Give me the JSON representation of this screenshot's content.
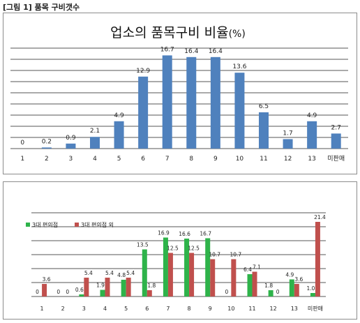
{
  "caption": "[그림 1] 품목 구비갯수",
  "chart_data": [
    {
      "type": "bar",
      "title": "업소의 품목구비 비율",
      "title_unit": "(%)",
      "categories": [
        "1",
        "2",
        "3",
        "4",
        "5",
        "6",
        "7",
        "8",
        "9",
        "10",
        "11",
        "12",
        "13",
        "미판매"
      ],
      "values": [
        0,
        0.2,
        0.9,
        2.1,
        4.9,
        12.9,
        16.7,
        16.4,
        16.4,
        13.6,
        6.5,
        1.7,
        4.9,
        2.7
      ],
      "value_labels": [
        "0",
        "0.2",
        "0.9",
        "2.1",
        "4.9",
        "12.9",
        "16.7",
        "16.4",
        "16.4",
        "13.6",
        "6.5",
        "1.7",
        "4.9",
        "2.7"
      ],
      "ylim": [
        0,
        18
      ],
      "grid": true,
      "bar_color": "#4f81bd"
    },
    {
      "type": "bar",
      "categories": [
        "1",
        "2",
        "3",
        "4",
        "5",
        "6",
        "7",
        "8",
        "9",
        "10",
        "11",
        "12",
        "13",
        "미판매"
      ],
      "series": [
        {
          "name": "3대 편의점",
          "color": "#2eb34a",
          "values": [
            0,
            0,
            0.6,
            1.9,
            4.8,
            13.5,
            16.9,
            16.6,
            16.7,
            0,
            6.4,
            1.8,
            4.9,
            1.0
          ],
          "value_labels": [
            "0",
            "0",
            "0.6",
            "1.9",
            "4.8",
            "13.5",
            "16.9",
            "16.6",
            "16.7",
            "0",
            "6.4",
            "1.8",
            "4.9",
            "1.0"
          ]
        },
        {
          "name": "3대 편의점 외",
          "color": "#c0504d",
          "values": [
            3.6,
            0,
            5.4,
            5.4,
            5.4,
            1.8,
            12.5,
            12.5,
            10.7,
            10.7,
            7.1,
            0,
            3.6,
            21.4
          ],
          "value_labels": [
            "3.6",
            "0",
            "5.4",
            "5.4",
            "5.4",
            "1.8",
            "12.5",
            "12.5",
            "10.7",
            "10.7",
            "7.1",
            "0",
            "3.6",
            "21.4"
          ]
        }
      ],
      "ylim": [
        0,
        24
      ],
      "grid": true,
      "legend": "top-left"
    }
  ]
}
